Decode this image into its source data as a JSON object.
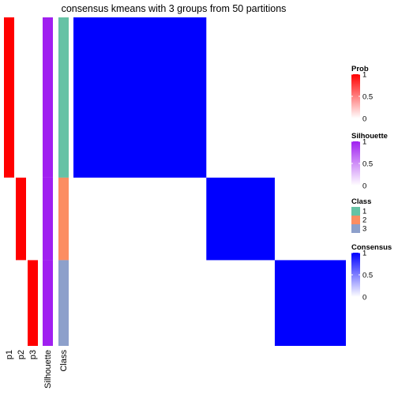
{
  "chart_data": {
    "type": "heatmap",
    "title": "consensus kmeans with 3 groups from 50 partitions",
    "groups": [
      {
        "class": "1",
        "size": 200,
        "prob": [
          1,
          0,
          0
        ],
        "silhouette": 1
      },
      {
        "class": "2",
        "size": 103,
        "prob": [
          0,
          1,
          0
        ],
        "silhouette": 1
      },
      {
        "class": "3",
        "size": 107,
        "prob": [
          0,
          0,
          1
        ],
        "silhouette": 1
      }
    ],
    "consensus_within_group": 1,
    "consensus_between_group": 0,
    "annotation_labels": [
      "p1",
      "p2",
      "p3",
      "Silhouette",
      "Class"
    ],
    "colors": {
      "prob_high": "#ff0000",
      "prob_mid": "#ffb3a7",
      "prob_low": "#ffffff",
      "silhouette_high": "#a020f0",
      "silhouette_low": "#ffffff",
      "consensus_high": "#0000ff",
      "consensus_low": "#ffffff",
      "class_1": "#66c2a5",
      "class_2": "#fc8d62",
      "class_3": "#8da0cb"
    },
    "legends": [
      {
        "title": "Prob",
        "kind": "gradient",
        "ticks": [
          "1",
          "0.5",
          "0"
        ],
        "high": "#ff0000",
        "low": "#ffffff"
      },
      {
        "title": "Silhouette",
        "kind": "gradient",
        "ticks": [
          "1",
          "0.5",
          "0"
        ],
        "high": "#a020f0",
        "low": "#ffffff"
      },
      {
        "title": "Class",
        "kind": "discrete",
        "items": [
          {
            "label": "1",
            "color": "#66c2a5"
          },
          {
            "label": "2",
            "color": "#fc8d62"
          },
          {
            "label": "3",
            "color": "#8da0cb"
          }
        ]
      },
      {
        "title": "Consensus",
        "kind": "gradient",
        "ticks": [
          "1",
          "0.5",
          "0"
        ],
        "high": "#0000ff",
        "low": "#ffffff"
      }
    ]
  }
}
